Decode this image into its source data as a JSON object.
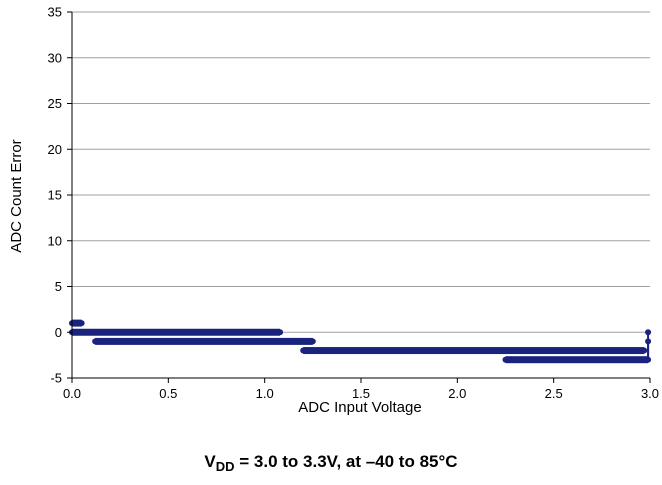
{
  "chart_data": {
    "type": "scatter",
    "title": "",
    "xlabel": "ADC Input Voltage",
    "ylabel": "ADC Count Error",
    "xlim": [
      0.0,
      3.0
    ],
    "ylim": [
      -5,
      35
    ],
    "xticks": [
      "0.0",
      "0.5",
      "1.0",
      "1.5",
      "2.0",
      "2.5",
      "3.0"
    ],
    "yticks": [
      "-5",
      "0",
      "5",
      "10",
      "15",
      "20",
      "25",
      "30",
      "35"
    ],
    "grid": "horizontal",
    "legend": "none",
    "marker_color": "#1a237e",
    "series": [
      {
        "segments": [
          {
            "x_range": [
              0.0,
              0.05
            ],
            "y": 1
          },
          {
            "x_range": [
              0.0,
              1.08
            ],
            "y": 0
          },
          {
            "x_range": [
              0.12,
              1.25
            ],
            "y": -1
          },
          {
            "x_range": [
              1.2,
              2.97
            ],
            "y": -2
          },
          {
            "x_range": [
              2.25,
              2.99
            ],
            "y": -3
          }
        ],
        "outliers": [
          {
            "x": 2.99,
            "y": 0
          },
          {
            "x": 2.99,
            "y": -1
          }
        ]
      }
    ]
  },
  "caption": {
    "v": "V",
    "sub": "DD",
    "rest": " = 3.0 to 3.3V, at –40 to 85°C"
  }
}
